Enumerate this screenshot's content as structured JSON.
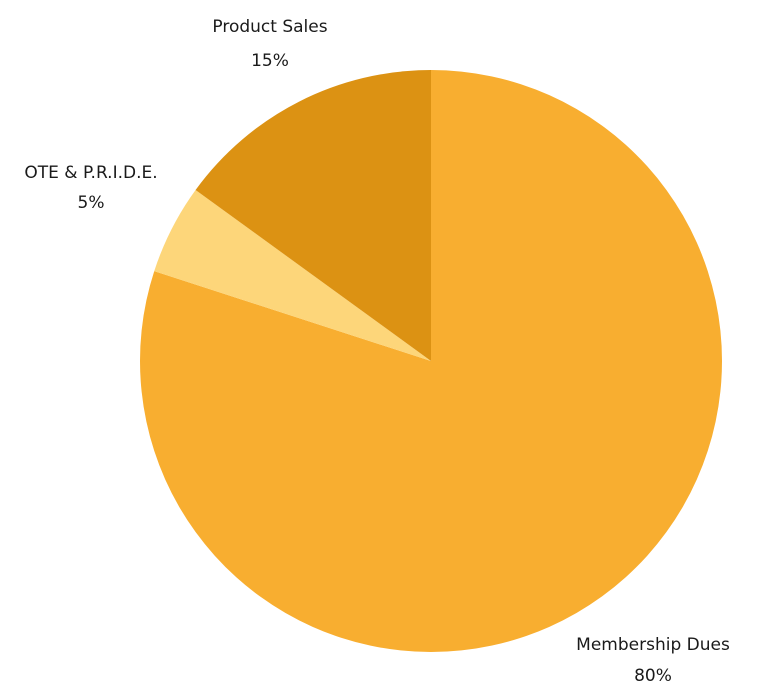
{
  "chart_data": {
    "type": "pie",
    "title": "",
    "start_angle_deg": 0,
    "direction": "clockwise",
    "slices": [
      {
        "label": "Membership Dues",
        "value": 80,
        "display": "80%",
        "color": "#F8AE30"
      },
      {
        "label": "OTE & P.R.I.D.E.",
        "value": 5,
        "display": "5%",
        "color": "#FDD67A"
      },
      {
        "label": "Product Sales",
        "value": 15,
        "display": "15%",
        "color": "#DC9213"
      }
    ]
  }
}
